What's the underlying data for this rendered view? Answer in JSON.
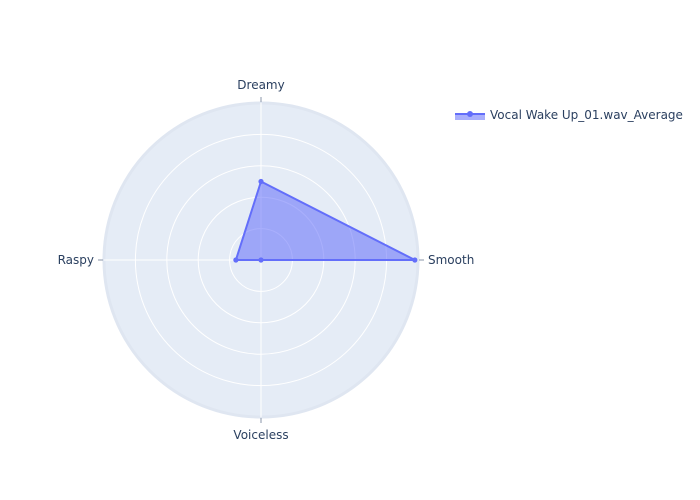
{
  "chart_data": {
    "type": "radar",
    "axes": [
      "Smooth",
      "Dreamy",
      "Raspy",
      "Voiceless"
    ],
    "series": [
      {
        "name": "Vocal Wake Up_01.wav_Average",
        "values": [
          0.98,
          0.5,
          0.16,
          0.0
        ],
        "color": "#636efa",
        "fill": "rgba(99,110,250,0.55)"
      }
    ],
    "radial_range": [
      0,
      1
    ],
    "grid": true,
    "legend": "top-right",
    "colors": {
      "plot_background": "#e5ecf6",
      "grid": "#ffffff",
      "text": "#2a3f5f",
      "tick": "#8a95aa"
    }
  }
}
